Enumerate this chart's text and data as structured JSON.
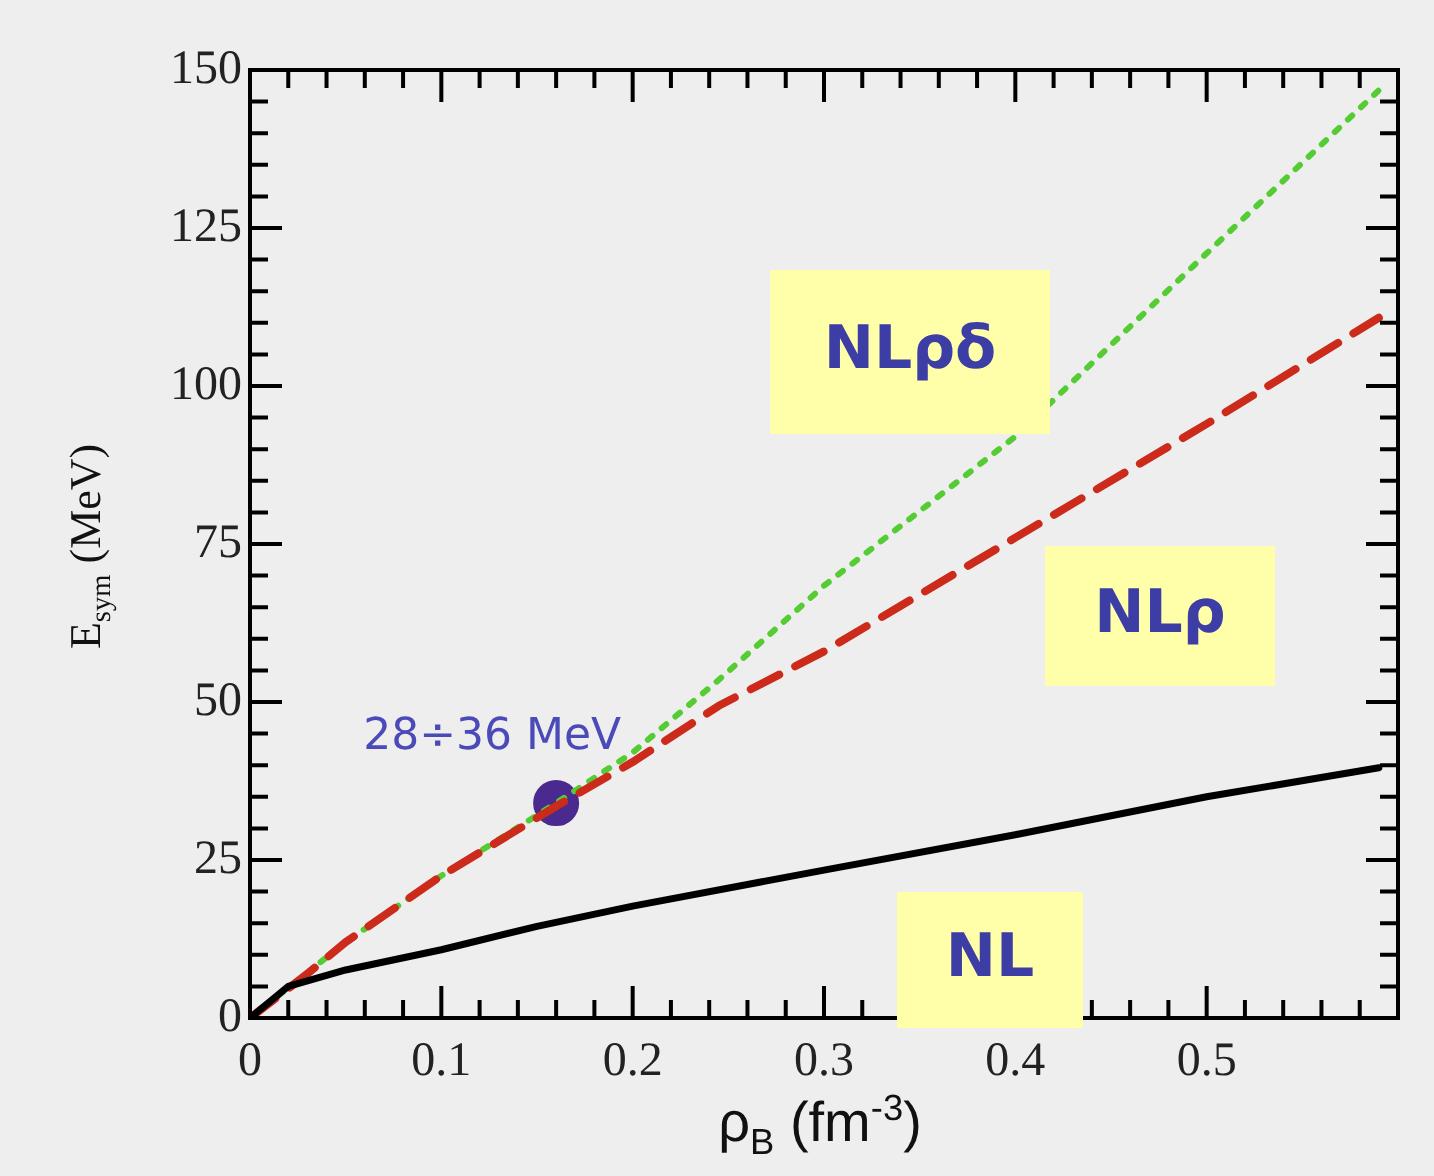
{
  "chart_data": {
    "type": "line",
    "xlabel": "ρ$_{B}$ (fm$^{-3}$)",
    "ylabel": "E$_{sym}$ (MeV)",
    "xlim": [
      0,
      0.6
    ],
    "ylim": [
      0,
      150
    ],
    "xticks": [
      0,
      {
        "value": 0.02,
        "label": null
      },
      {
        "value": 0.04,
        "label": null
      },
      {
        "value": 0.06,
        "label": null
      },
      {
        "value": 0.08,
        "label": null
      },
      0.1,
      {
        "value": 0.12,
        "label": null
      },
      {
        "value": 0.14,
        "label": null
      },
      {
        "value": 0.16,
        "label": null
      },
      {
        "value": 0.18,
        "label": null
      },
      0.2,
      {
        "value": 0.22,
        "label": null
      },
      {
        "value": 0.24,
        "label": null
      },
      {
        "value": 0.26,
        "label": null
      },
      {
        "value": 0.28,
        "label": null
      },
      0.3,
      {
        "value": 0.32,
        "label": null
      },
      {
        "value": 0.34,
        "label": null
      },
      {
        "value": 0.36,
        "label": null
      },
      {
        "value": 0.38,
        "label": null
      },
      0.4,
      {
        "value": 0.42,
        "label": null
      },
      {
        "value": 0.44,
        "label": null
      },
      {
        "value": 0.46,
        "label": null
      },
      {
        "value": 0.48,
        "label": null
      },
      0.5,
      {
        "value": 0.52,
        "label": null
      },
      {
        "value": 0.54,
        "label": null
      },
      {
        "value": 0.56,
        "label": null
      },
      {
        "value": 0.58,
        "label": null
      }
    ],
    "yticks": [
      0,
      {
        "value": 5,
        "label": null
      },
      {
        "value": 10,
        "label": null
      },
      {
        "value": 15,
        "label": null
      },
      {
        "value": 20,
        "label": null
      },
      25,
      {
        "value": 30,
        "label": null
      },
      {
        "value": 35,
        "label": null
      },
      {
        "value": 40,
        "label": null
      },
      {
        "value": 45,
        "label": null
      },
      50,
      {
        "value": 55,
        "label": null
      },
      {
        "value": 60,
        "label": null
      },
      {
        "value": 65,
        "label": null
      },
      {
        "value": 70,
        "label": null
      },
      75,
      {
        "value": 80,
        "label": null
      },
      {
        "value": 85,
        "label": null
      },
      {
        "value": 90,
        "label": null
      },
      {
        "value": 95,
        "label": null
      },
      100,
      {
        "value": 105,
        "label": null
      },
      {
        "value": 110,
        "label": null
      },
      {
        "value": 115,
        "label": null
      },
      {
        "value": 120,
        "label": null
      },
      125,
      {
        "value": 130,
        "label": null
      },
      {
        "value": 135,
        "label": null
      },
      {
        "value": 140,
        "label": null
      },
      {
        "value": 145,
        "label": null
      },
      150
    ],
    "grid": false,
    "marker": "none",
    "series": [
      {
        "name": "NL",
        "color": "#000000",
        "line_style": "solid",
        "x": [
          0,
          0.02,
          0.05,
          0.1,
          0.15,
          0.2,
          0.3,
          0.4,
          0.5,
          0.59
        ],
        "values": [
          0,
          5,
          7.6,
          10.8,
          14.5,
          17.7,
          23.4,
          29,
          35,
          39.6
        ]
      },
      {
        "name": "NLρ",
        "color": "#cc2a1a",
        "line_style": "dashed",
        "x": [
          0,
          0.03,
          0.05,
          0.1,
          0.16,
          0.2,
          0.245,
          0.3,
          0.4,
          0.5,
          0.59
        ],
        "values": [
          0,
          7,
          12,
          22.5,
          33.5,
          40.5,
          49.4,
          58,
          76,
          94,
          110.8
        ]
      },
      {
        "name": "NLρδ",
        "color": "#55cc33",
        "line_style": "dotted",
        "x": [
          0,
          0.05,
          0.1,
          0.16,
          0.2,
          0.245,
          0.3,
          0.4,
          0.5,
          0.59
        ],
        "values": [
          0,
          12,
          22.5,
          34,
          42,
          53.5,
          68.4,
          92,
          121,
          146.8
        ]
      },
      {
        "type": "scatter",
        "marker": "circle",
        "color": "#4b2a8f",
        "x": [
          0.16
        ],
        "values": [
          34
        ]
      }
    ],
    "annotations": [
      {
        "text": "28÷36 MeV",
        "x": 0.16,
        "y": 34
      }
    ]
  }
}
